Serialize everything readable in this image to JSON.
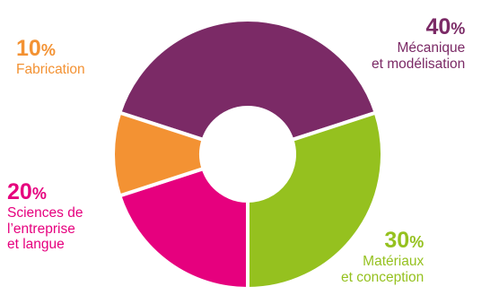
{
  "chart_data": {
    "type": "pie",
    "style": "donut",
    "slices": [
      {
        "value": 40,
        "pct_number": "40",
        "pct_sign": "%",
        "label_lines": [
          "Mécanique",
          "et modélisation"
        ],
        "color": "#7B2A66"
      },
      {
        "value": 30,
        "pct_number": "30",
        "pct_sign": "%",
        "label_lines": [
          "Matériaux",
          "et conception"
        ],
        "color": "#95C11F"
      },
      {
        "value": 20,
        "pct_number": "20",
        "pct_sign": "%",
        "label_lines": [
          "Sciences de",
          "l’entreprise",
          "et langue"
        ],
        "color": "#E6007E"
      },
      {
        "value": 10,
        "pct_number": "10",
        "pct_sign": "%",
        "label_lines": [
          "Fabrication"
        ],
        "color": "#F39233"
      }
    ]
  }
}
